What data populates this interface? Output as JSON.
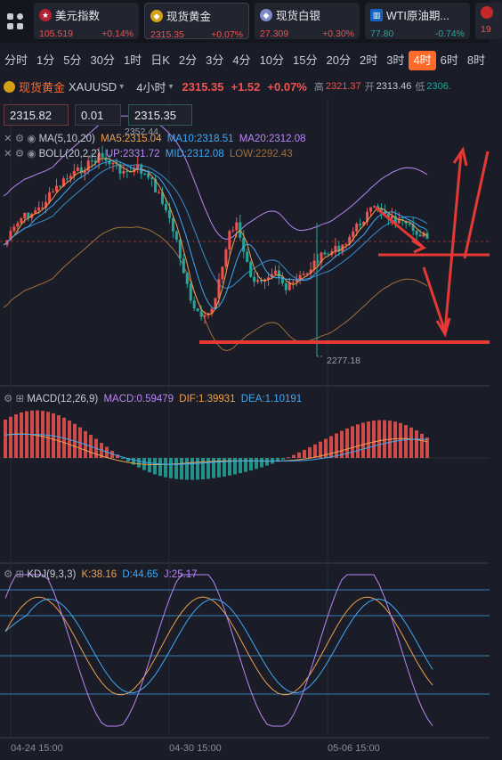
{
  "tickers": [
    {
      "name": "美元指数",
      "price": "105.519",
      "change": "+0.14%",
      "icon": "flag-us-icon",
      "dir": "up"
    },
    {
      "name": "现货黄金",
      "price": "2315.35",
      "change": "+0.07%",
      "icon": "gold-icon",
      "dir": "up"
    },
    {
      "name": "现货白银",
      "price": "27.309",
      "change": "+0.30%",
      "icon": "silver-icon",
      "dir": "up"
    },
    {
      "name": "WTI原油期...",
      "price": "77.80",
      "change": "-0.74%",
      "icon": "oil-icon",
      "dir": "dn"
    },
    {
      "name": "",
      "price": "19",
      "change": "",
      "icon": "partial-icon",
      "dir": "up"
    }
  ],
  "timeframes": [
    "分时",
    "1分",
    "5分",
    "30分",
    "1时",
    "日K",
    "2分",
    "3分",
    "4分",
    "10分",
    "15分",
    "20分",
    "2时",
    "3时",
    "4时",
    "6时",
    "8时"
  ],
  "active_timeframe": "4时",
  "info": {
    "name": "现货黄金",
    "symbol": "XAUUSD",
    "period": "4小时",
    "price": "2315.35",
    "change": "+1.52",
    "pct": "+0.07%",
    "high_label": "高",
    "high": "2321.37",
    "open_label": "开",
    "open": "2313.46",
    "low_label": "低",
    "low": "2306."
  },
  "order": {
    "sell": "2315.82",
    "lot": "0.01",
    "buy": "2315.35"
  },
  "ma": {
    "label": "MA(5,10,20)",
    "ma5": "MA5:2315.04",
    "ma10": "MA10:2318.51",
    "ma20": "MA20:2312.08"
  },
  "boll": {
    "label": "BOLL(20,2,2)",
    "up": "UP:2331.72",
    "mid": "MID:2312.08",
    "low": "LOW:2292.43"
  },
  "price_marks": {
    "high": "2352.44",
    "low": "2277.18"
  },
  "macd": {
    "label": "MACD(12,26,9)",
    "macd": "MACD:0.59479",
    "dif": "DIF:1.39931",
    "dea": "DEA:1.10191"
  },
  "kdj": {
    "label": "KDJ(9,3,3)",
    "k": "K:38.16",
    "d": "D:44.65",
    "j": "J:25.17"
  },
  "dates": [
    "04-24 15:00",
    "04-30 15:00",
    "05-06 15:00"
  ],
  "colors": {
    "up": "#ef5350",
    "down": "#26a69a",
    "accent": "#ff6a2b",
    "ma5": "#f0a04b",
    "ma10": "#3fa9f5",
    "ma20": "#b985f5",
    "bollLow": "#a0703a"
  }
}
